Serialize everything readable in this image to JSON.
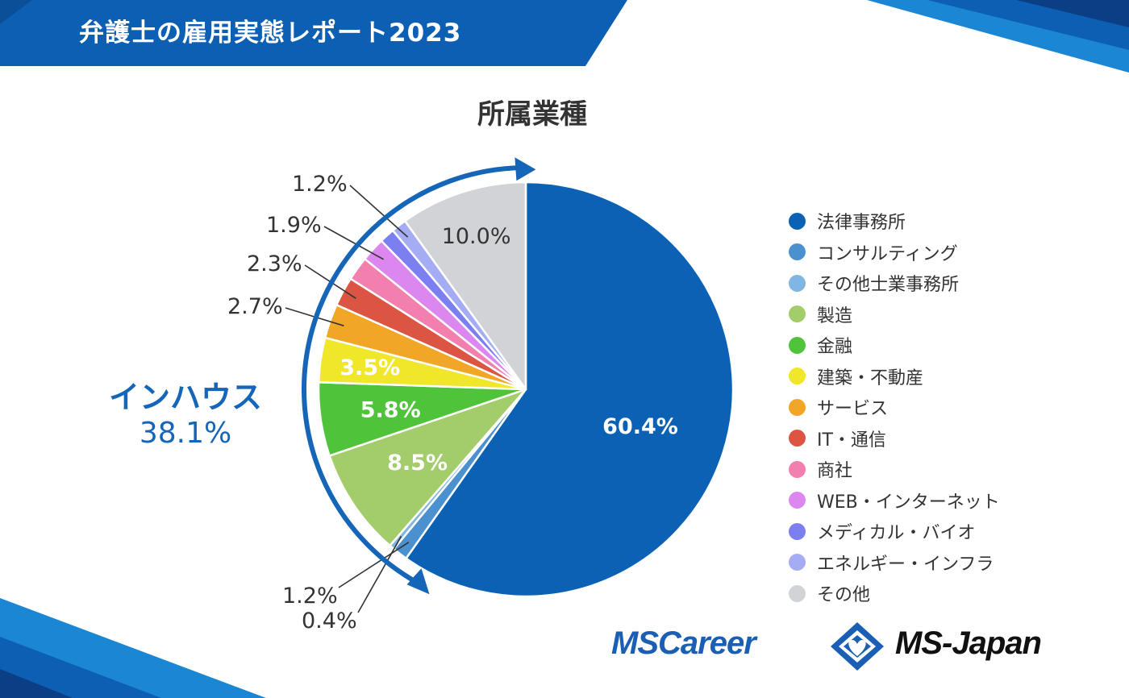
{
  "header": {
    "title": "弁護士の雇用実態レポート2023"
  },
  "chart_data": {
    "type": "pie",
    "title": "所属業種",
    "categories": [
      "法律事務所",
      "コンサルティング",
      "その他士業事務所",
      "製造",
      "金融",
      "建築・不動産",
      "サービス",
      "IT・通信",
      "商社",
      "WEB・インターネット",
      "メディカル・バイオ",
      "エネルギー・インフラ",
      "その他"
    ],
    "values": [
      60.4,
      1.2,
      0.4,
      8.5,
      5.8,
      3.5,
      2.7,
      2.3,
      1.9,
      1.9,
      1.2,
      1.2,
      10.0
    ],
    "labels": [
      "60.4%",
      "1.2%",
      "0.4%",
      "8.5%",
      "5.8%",
      "3.5%",
      "2.7%",
      "2.3%",
      "",
      "1.9%",
      "",
      "1.2%",
      "10.0%"
    ],
    "colors": [
      "#0b62b4",
      "#4b91cf",
      "#7fb6e2",
      "#a3cc6a",
      "#4fc43a",
      "#f0e62a",
      "#f2a626",
      "#dc5542",
      "#f37fae",
      "#dc86ef",
      "#7b7ff0",
      "#a4acf3",
      "#d2d3d6"
    ],
    "legend_position": "right",
    "annotation": {
      "label": "インハウス",
      "value": "38.1%"
    }
  },
  "logos": {
    "left": "MSCareer",
    "right": "MS-Japan"
  }
}
